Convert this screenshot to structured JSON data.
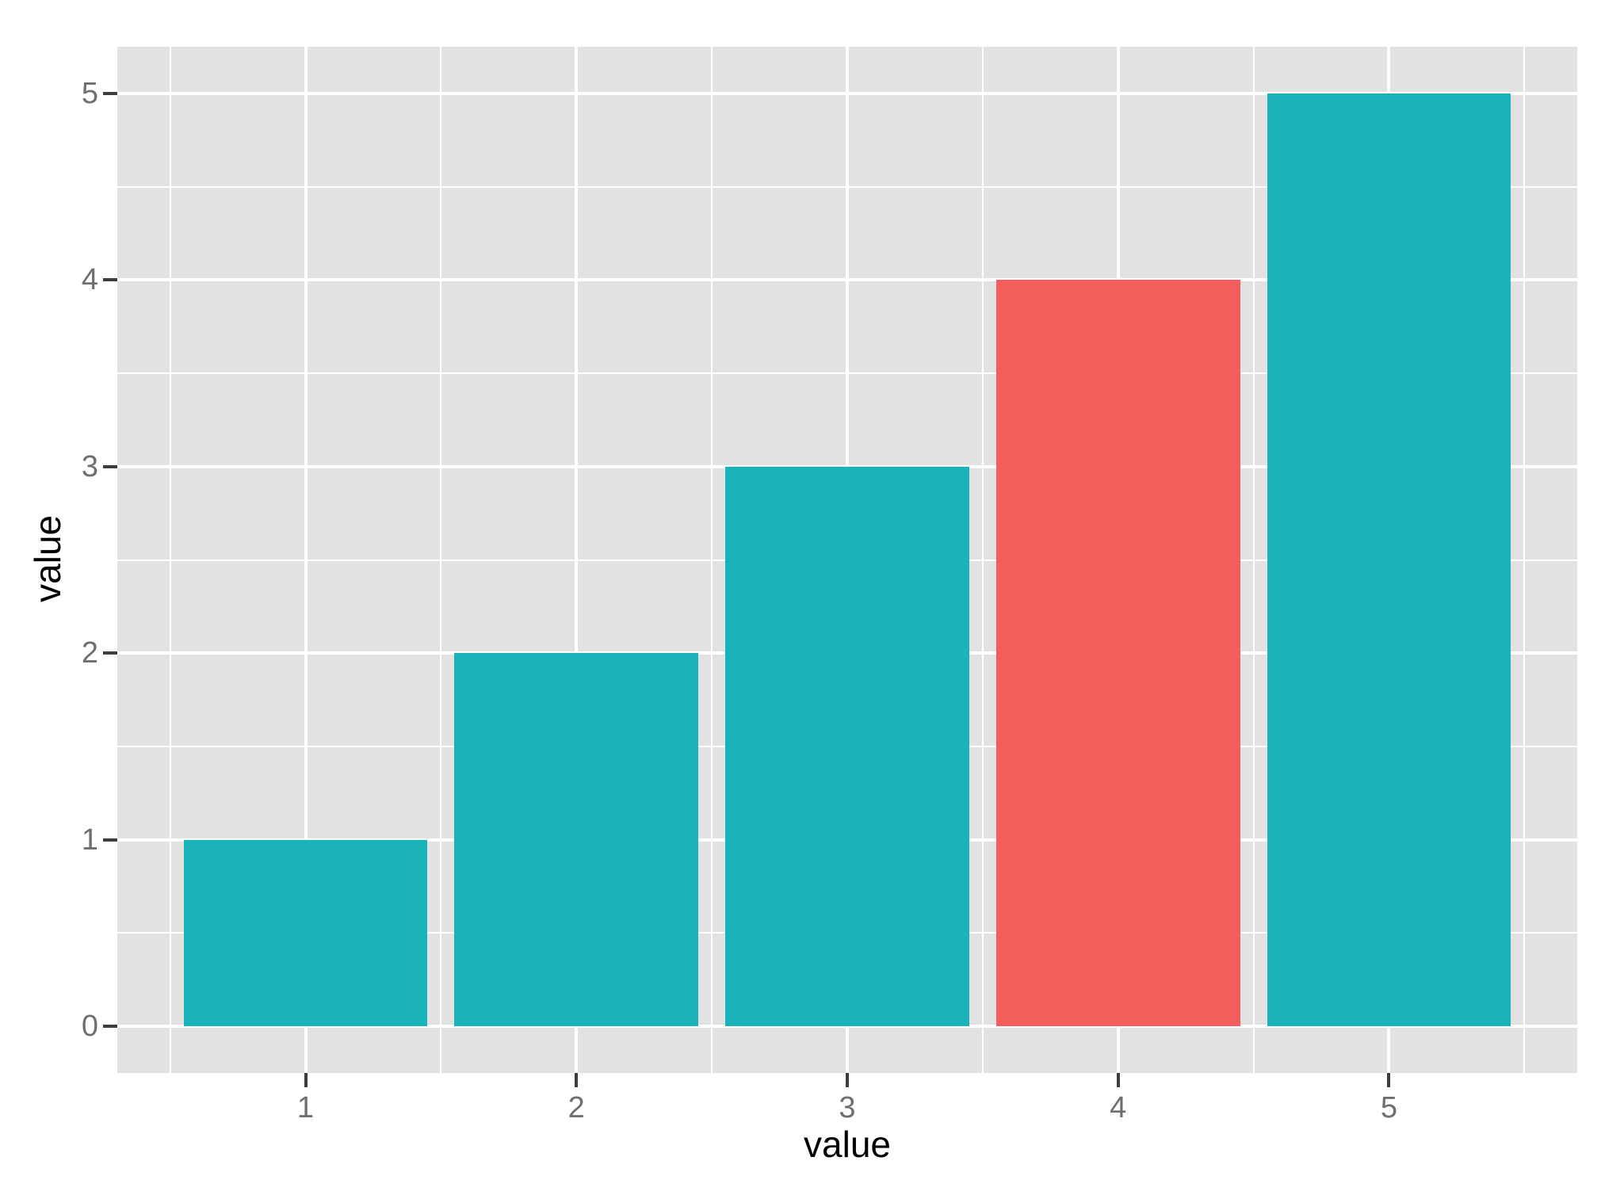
{
  "chart_data": {
    "type": "bar",
    "title": "",
    "xlabel": "value",
    "ylabel": "value",
    "x": [
      1,
      2,
      3,
      4,
      5
    ],
    "values": [
      1,
      2,
      3,
      4,
      5
    ],
    "bar_colors": [
      "#1AB3B9",
      "#1AB3B9",
      "#1AB3B9",
      "#F35E5C",
      "#1AB3B9"
    ],
    "highlighted_bar_x": 4,
    "bar_width": 0.9,
    "xlim": [
      0.305,
      5.695
    ],
    "ylim": [
      -0.25,
      5.25
    ],
    "x_ticks": {
      "values": [
        1,
        2,
        3,
        4,
        5
      ],
      "labels": [
        "1",
        "2",
        "3",
        "4",
        "5"
      ]
    },
    "y_ticks": {
      "values": [
        0,
        1,
        2,
        3,
        4,
        5
      ],
      "labels": [
        "0",
        "1",
        "2",
        "3",
        "4",
        "5"
      ]
    },
    "x_minor": [
      0.5,
      1.5,
      2.5,
      3.5,
      4.5,
      5.5
    ],
    "y_minor": [
      0.5,
      1.5,
      2.5,
      3.5,
      4.5
    ],
    "grid": true,
    "legend": "none",
    "style": {
      "panel_bg": "#E2E2E2",
      "grid_color": "#FFFFFF",
      "tick_mark_color": "#3D3D3D",
      "tick_label_color": "#6F6F6F",
      "axis_title_color": "#000000"
    }
  }
}
